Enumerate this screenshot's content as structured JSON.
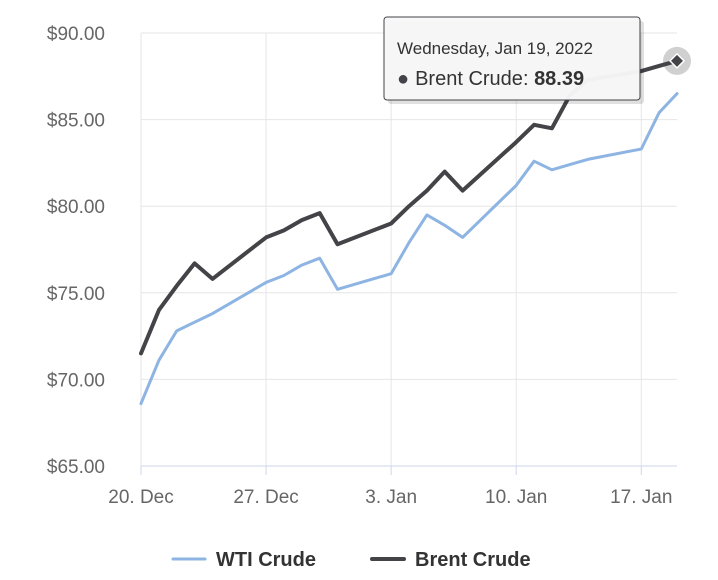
{
  "chart_data": {
    "type": "line",
    "title": "",
    "xlabel": "",
    "ylabel": "",
    "x": [
      "2021-12-20",
      "2021-12-21",
      "2021-12-22",
      "2021-12-23",
      "2021-12-24",
      "2021-12-27",
      "2021-12-28",
      "2021-12-29",
      "2021-12-30",
      "2021-12-31",
      "2022-01-03",
      "2022-01-04",
      "2022-01-05",
      "2022-01-06",
      "2022-01-07",
      "2022-01-10",
      "2022-01-11",
      "2022-01-12",
      "2022-01-13",
      "2022-01-14",
      "2022-01-17",
      "2022-01-18",
      "2022-01-19"
    ],
    "x_tick_labels": [
      "20. Dec",
      "27. Dec",
      "3. Jan",
      "10. Jan",
      "17. Jan"
    ],
    "x_ticks": [
      "2021-12-20",
      "2021-12-27",
      "2022-01-03",
      "2022-01-10",
      "2022-01-17"
    ],
    "xlim": [
      "2021-12-20",
      "2022-01-19"
    ],
    "y_tick_labels": [
      "$65.00",
      "$70.00",
      "$75.00",
      "$80.00",
      "$85.00",
      "$90.00"
    ],
    "y_ticks": [
      65,
      70,
      75,
      80,
      85,
      90
    ],
    "ylim": [
      65,
      90
    ],
    "grid": true,
    "legend_position": "bottom-center",
    "series": [
      {
        "name": "WTI Crude",
        "color": "#8db4e2",
        "values": [
          68.6,
          71.1,
          72.8,
          73.3,
          73.8,
          75.6,
          76.0,
          76.6,
          77.0,
          75.2,
          76.1,
          77.9,
          79.5,
          78.9,
          78.2,
          81.2,
          82.6,
          82.1,
          82.4,
          82.7,
          83.3,
          85.4,
          86.5
        ]
      },
      {
        "name": "Brent Crude",
        "color": "#434348",
        "values": [
          71.5,
          74.0,
          75.4,
          76.7,
          75.8,
          78.2,
          78.6,
          79.2,
          79.6,
          77.8,
          79.0,
          80.0,
          80.9,
          82.0,
          80.9,
          83.7,
          84.7,
          84.5,
          86.4,
          87.3,
          87.8,
          88.1,
          88.39
        ]
      }
    ],
    "tooltip": {
      "date": "Wednesday, Jan 19, 2022",
      "series_name": "Brent Crude",
      "value": "88.39",
      "bullet": "●"
    }
  }
}
